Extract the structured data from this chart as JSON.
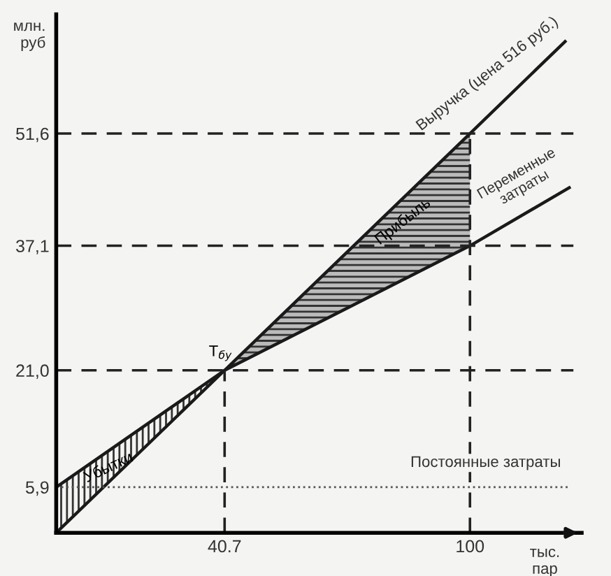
{
  "chart_data": {
    "type": "line",
    "xlabel": "тыс. пар",
    "ylabel": "млн. руб",
    "series": [
      {
        "name": "Выручка (цена 516 руб.)",
        "color": "#1a1a1a",
        "x": [
          0,
          40.7,
          100,
          123
        ],
        "values": [
          0,
          21.0,
          51.6,
          63.5
        ]
      },
      {
        "name": "Переменные затраты",
        "color": "#1a1a1a",
        "x": [
          0,
          40.7,
          100,
          124
        ],
        "values": [
          5.9,
          21.0,
          37.1,
          44.6
        ]
      },
      {
        "name": "Постоянные затраты",
        "color": "#555555",
        "x": [
          0,
          124
        ],
        "values": [
          5.9,
          5.9
        ],
        "line_style": "dotted"
      }
    ],
    "xlim": [
      0,
      127
    ],
    "ylim": [
      0,
      67
    ],
    "xticks": [
      {
        "value": 40.7,
        "label": "40.7"
      },
      100
    ],
    "yticks": [
      {
        "value": 5.9,
        "label": "5,9"
      },
      {
        "value": 21.0,
        "label": "21,0"
      },
      {
        "value": 37.1,
        "label": "37,1"
      },
      {
        "value": 51.6,
        "label": "51,6"
      }
    ],
    "ref_lines": [
      {
        "axis": "y",
        "value": 51.6,
        "line_style": "dashed"
      },
      {
        "axis": "y",
        "value": 37.1,
        "line_style": "dashed"
      },
      {
        "axis": "y",
        "value": 21.0,
        "line_style": "dashed"
      },
      {
        "axis": "x",
        "value": 40.7,
        "line_style": "dashed"
      },
      {
        "axis": "x",
        "value": 100,
        "line_style": "dashed"
      }
    ],
    "annotations": [
      {
        "text": "Т$_{бу}$",
        "x": 40.7,
        "y": 21.0
      },
      "Прибыль",
      "Убытки"
    ],
    "grid": false,
    "legend": false,
    "marker": "none",
    "line_style": "solid"
  }
}
